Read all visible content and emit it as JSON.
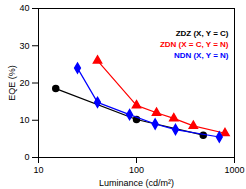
{
  "chart_data": {
    "type": "line",
    "x_label": "Luminance (cd/m²)",
    "y_label": "EQE (%)",
    "log": "x",
    "xlim": [
      10,
      1000
    ],
    "xticks": [
      10,
      100,
      1000
    ],
    "ylim": [
      0,
      40
    ],
    "yticks": [
      0,
      10,
      20,
      30,
      40
    ],
    "grid": false,
    "legend": "top-right",
    "series": [
      {
        "name": "ZDZ (X, Y = C)",
        "color": "#000000",
        "marker": "circle",
        "x": [
          15,
          100,
          480
        ],
        "values": [
          18.5,
          10.2,
          6.0
        ]
      },
      {
        "name": "ZDN (X = C, Y = N)",
        "color": "#ff0000",
        "marker": "triangle",
        "x": [
          40,
          100,
          160,
          240,
          380,
          800
        ],
        "values": [
          26,
          14,
          12,
          10.5,
          8.5,
          6.5
        ]
      },
      {
        "name": "NDN (X, Y = N)",
        "color": "#0000ff",
        "marker": "diamond",
        "x": [
          25,
          40,
          85,
          155,
          250,
          700
        ],
        "values": [
          24,
          14.8,
          11.5,
          9,
          7.5,
          5.5
        ]
      }
    ]
  }
}
